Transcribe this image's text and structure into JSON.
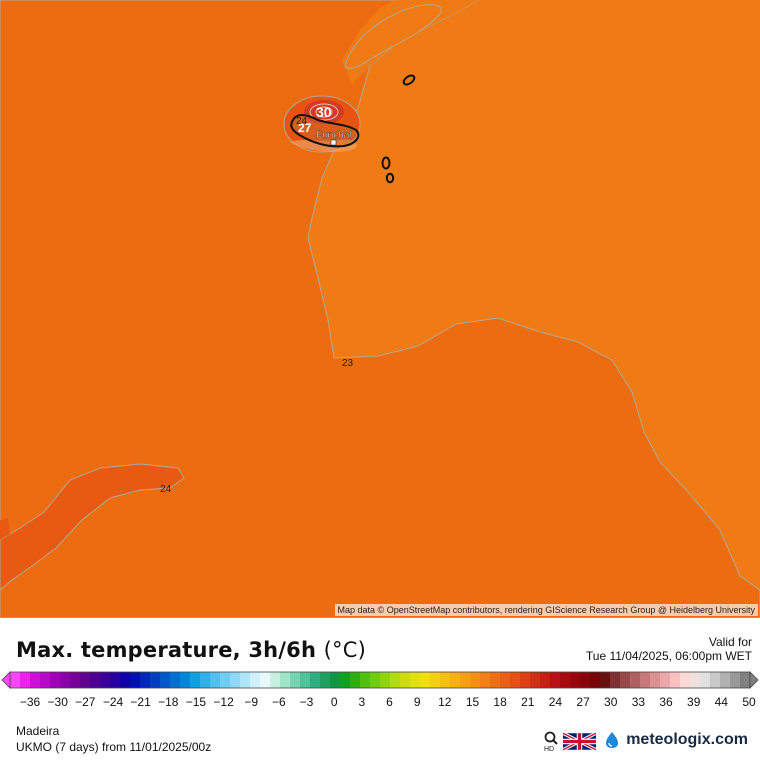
{
  "map": {
    "place_label": "Funchal",
    "contour_labels": [
      {
        "text": "30"
      },
      {
        "text": "27"
      },
      {
        "text": "24"
      },
      {
        "text": "23"
      },
      {
        "text": "24"
      }
    ],
    "attribution": "Map data © OpenStreetMap contributors, rendering GIScience Research Group @ Heidelberg University",
    "colors": {
      "sea_23": "#f07a14",
      "sea_24": "#ee6c10",
      "warm_25": "#e85410",
      "hot_30": "#d43a20"
    }
  },
  "legend": {
    "title": "Max. temperature, 3h/6h",
    "unit": "(°C)",
    "valid_label": "Valid for",
    "valid_time": "Tue 11/04/2025, 06:00pm WET",
    "ticks": [
      "-36",
      "-30",
      "-27",
      "-24",
      "-21",
      "-18",
      "-15",
      "-12",
      "-9",
      "-6",
      "-3",
      "0",
      "3",
      "6",
      "9",
      "12",
      "15",
      "18",
      "21",
      "24",
      "27",
      "30",
      "33",
      "36",
      "39",
      "44",
      "50"
    ],
    "colors": [
      "#ff44ff",
      "#ee22ee",
      "#d010d8",
      "#b808c8",
      "#a000b8",
      "#8a00a8",
      "#760098",
      "#620090",
      "#4e0090",
      "#3a0098",
      "#2600a0",
      "#1000a8",
      "#0010b0",
      "#0028b8",
      "#0040c0",
      "#0058c8",
      "#0070d0",
      "#0088d8",
      "#10a0e0",
      "#30b0e8",
      "#50c0ee",
      "#70ccf2",
      "#90d8f6",
      "#b0e4fa",
      "#d0f0fc",
      "#e8f8fe",
      "#c8f0e0",
      "#a0e4c8",
      "#78d4b0",
      "#50c498",
      "#30b080",
      "#20a060",
      "#109840",
      "#10a020",
      "#30b010",
      "#50c010",
      "#70cc10",
      "#90d410",
      "#b0dc10",
      "#ccdc10",
      "#e0e010",
      "#f0e010",
      "#f4d010",
      "#f6c010",
      "#f8b010",
      "#f8a010",
      "#f69010",
      "#f28014",
      "#ee7014",
      "#ea6014",
      "#e45014",
      "#dc4014",
      "#d03014",
      "#c42014",
      "#b81014",
      "#a80a10",
      "#98060c",
      "#880408",
      "#780206",
      "#681010",
      "#803030",
      "#984848",
      "#b06060",
      "#c87878",
      "#dc9090",
      "#eca8a8",
      "#f8c0c0",
      "#fcd8d8",
      "#f0e0e0",
      "#e0e0e0",
      "#c8c8c8",
      "#b0b0b0",
      "#989898",
      "#808080"
    ],
    "region": "Madeira",
    "model_run": "UKMO (7 days) from 11/01/2025/00z",
    "brand": "meteologix.com"
  }
}
